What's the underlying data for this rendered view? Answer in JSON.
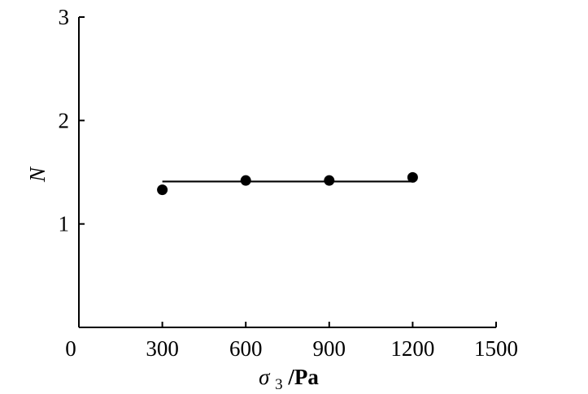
{
  "chart_data": {
    "type": "scatter",
    "title": "",
    "xlabel": {
      "symbol": "σ",
      "subscript": "3",
      "unit": "/Pa"
    },
    "ylabel": "N",
    "xlim": [
      0,
      1500
    ],
    "ylim": [
      0,
      3
    ],
    "x_ticks": [
      0,
      300,
      600,
      900,
      1200,
      1500
    ],
    "y_ticks": [
      1,
      2,
      3
    ],
    "x_tick_labels": [
      "0",
      "300",
      "600",
      "900",
      "1200",
      "1500"
    ],
    "y_tick_labels": [
      "1",
      "2",
      "3"
    ],
    "grid": false,
    "series": [
      {
        "type": "scatter",
        "points": [
          {
            "x": 300,
            "y": 1.33
          },
          {
            "x": 600,
            "y": 1.42
          },
          {
            "x": 900,
            "y": 1.42
          },
          {
            "x": 1200,
            "y": 1.45
          }
        ]
      },
      {
        "type": "line",
        "points": [
          {
            "x": 300,
            "y": 1.41
          },
          {
            "x": 1200,
            "y": 1.41
          }
        ]
      }
    ],
    "colors": {
      "marker": "#000000",
      "line": "#000000",
      "axis": "#000000"
    }
  }
}
